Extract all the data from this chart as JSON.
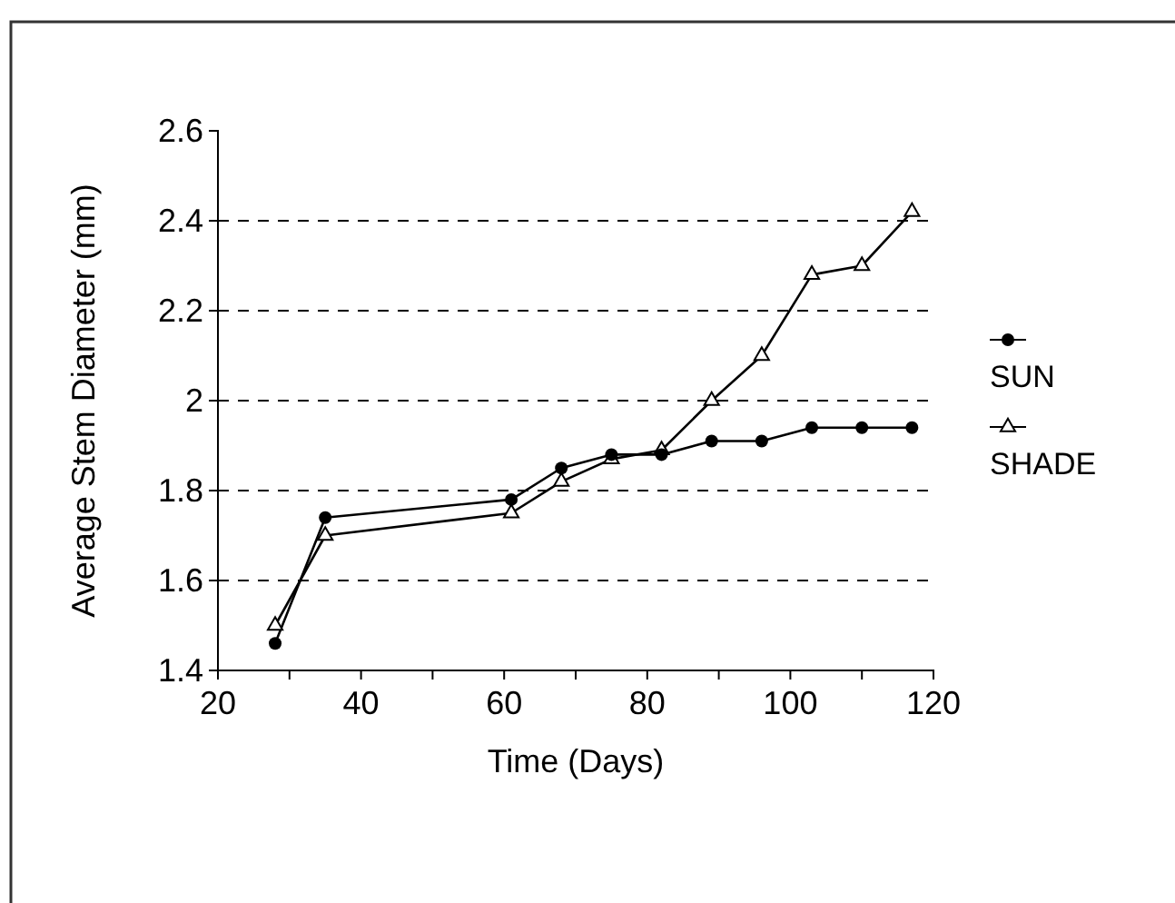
{
  "chart_data": {
    "type": "line",
    "xlabel": "Time (Days)",
    "ylabel": "Average Stem Diameter (mm)",
    "xlim": [
      20,
      120
    ],
    "xticks": [
      20,
      {
        "value": 30,
        "label": null
      },
      40,
      {
        "value": 50,
        "label": null
      },
      60,
      {
        "value": 70,
        "label": null
      },
      80,
      {
        "value": 90,
        "label": null
      },
      100,
      {
        "value": 110,
        "label": null
      },
      120
    ],
    "ylim": [
      1.4,
      2.6
    ],
    "yticks": [
      1.4,
      1.6,
      1.8,
      2,
      2.2,
      2.4,
      2.6
    ],
    "grid": "y",
    "legend": "right",
    "line_style": "solid",
    "x": [
      28,
      35,
      61,
      68,
      75,
      82,
      89,
      96,
      103,
      110,
      117
    ],
    "series": [
      {
        "name": "SUN",
        "color": "#000000",
        "marker": "circle",
        "values": [
          1.46,
          1.74,
          1.78,
          1.85,
          1.88,
          1.88,
          1.91,
          1.91,
          1.94,
          1.94,
          1.94
        ]
      },
      {
        "name": "SHADE",
        "color": "#000000",
        "marker": "triangle",
        "values": [
          1.5,
          1.7,
          1.75,
          1.82,
          1.87,
          1.89,
          2.0,
          2.1,
          2.28,
          2.3,
          2.42
        ]
      }
    ]
  }
}
